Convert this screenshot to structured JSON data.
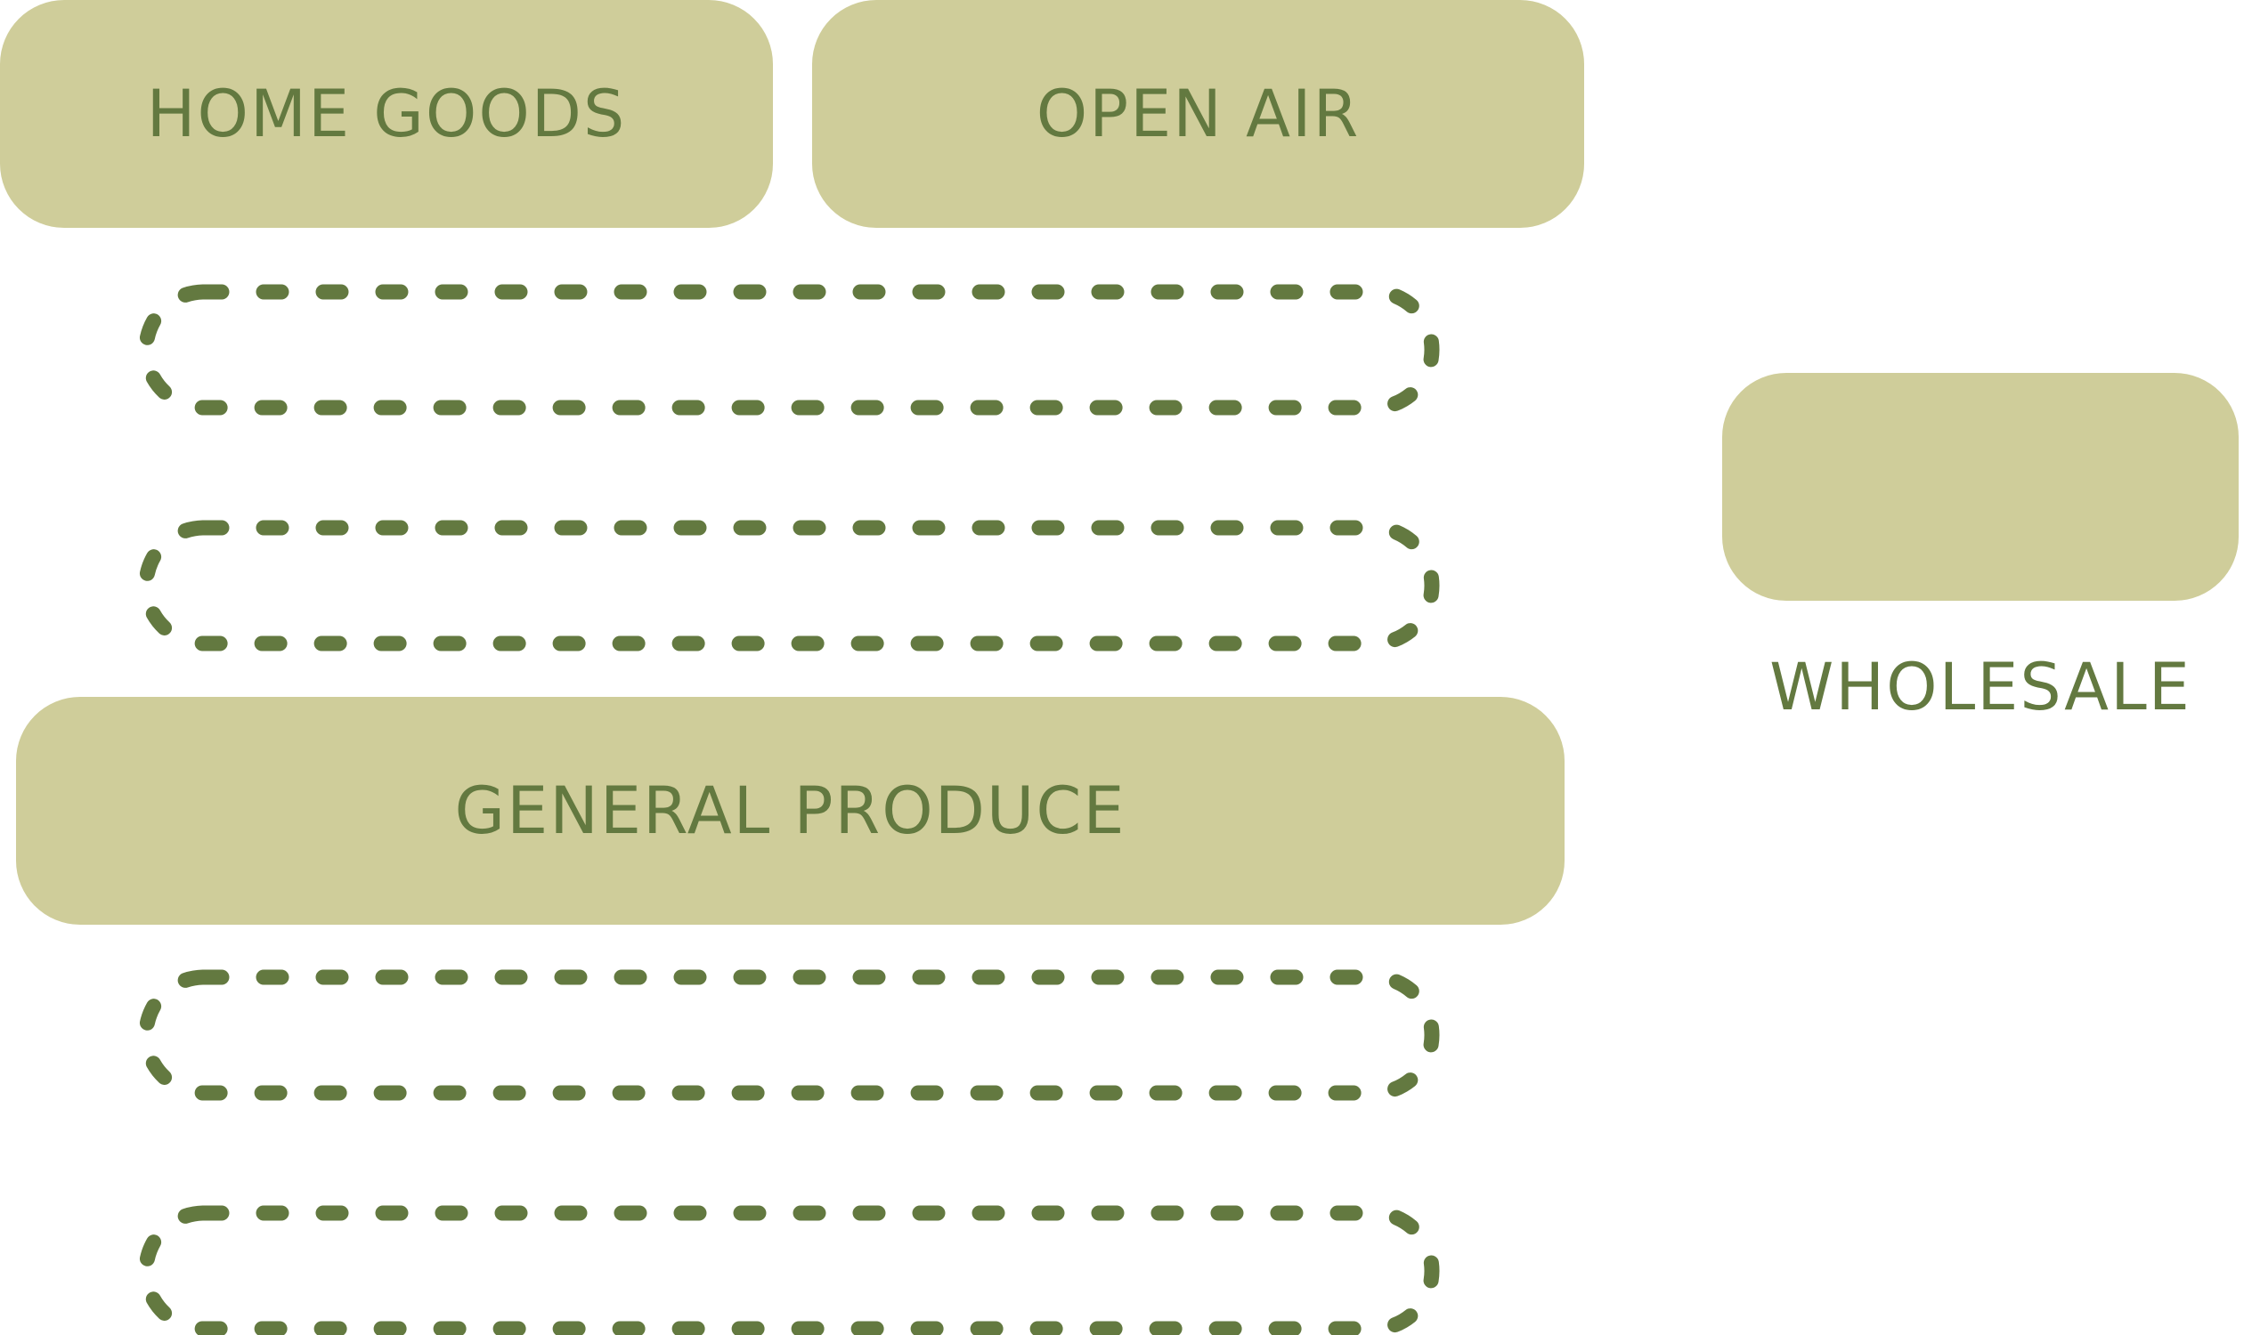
{
  "zones": {
    "home_goods": {
      "label": "HOME GOODS"
    },
    "open_air": {
      "label": "OPEN AIR"
    },
    "general_produce": {
      "label": "GENERAL PRODUCE"
    },
    "wholesale": {
      "label": "WHOLESALE"
    }
  },
  "colors": {
    "zone_fill": "#cfcd9a",
    "text": "#637940",
    "dotted_outline": "#637940"
  },
  "dotted_rows": {
    "count": 4
  }
}
